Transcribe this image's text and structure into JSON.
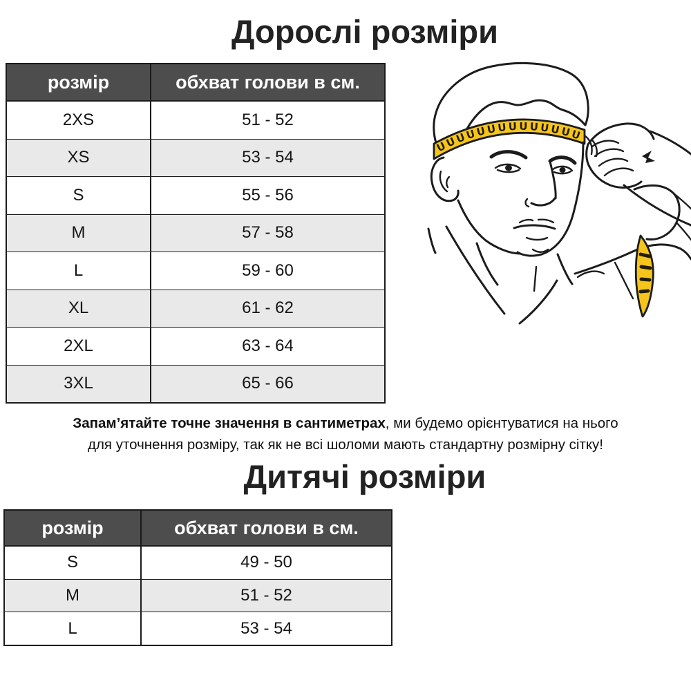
{
  "adult": {
    "title": "Дорослі розміри",
    "table": {
      "col_size": "розмір",
      "col_circumference": "обхват голови в см.",
      "rows": [
        {
          "size": "2XS",
          "cm": "51 - 52"
        },
        {
          "size": "XS",
          "cm": "53 - 54"
        },
        {
          "size": "S",
          "cm": "55 - 56"
        },
        {
          "size": "M",
          "cm": "57 - 58"
        },
        {
          "size": "L",
          "cm": "59 - 60"
        },
        {
          "size": "XL",
          "cm": "61 - 62"
        },
        {
          "size": "2XL",
          "cm": "63 - 64"
        },
        {
          "size": "3XL",
          "cm": "65 - 66"
        }
      ]
    }
  },
  "note": {
    "bold": "Запам’ятайте точне значення в сантиметрах",
    "line1_rest": ", ми будемо орієнтуватися на нього",
    "line2": "для уточнення розміру, так як не всі шоломи мають стандартну розмірну сітку!"
  },
  "kids": {
    "title": "Дитячі розміри",
    "table": {
      "col_size": "розмір",
      "col_circumference": "обхват голови в см.",
      "rows": [
        {
          "size": "S",
          "cm": "49 - 50"
        },
        {
          "size": "M",
          "cm": "51 - 52"
        },
        {
          "size": "L",
          "cm": "53 - 54"
        }
      ]
    }
  },
  "illustration": {
    "description": "line drawing of a man measuring his head circumference with a yellow measuring tape",
    "tape_marks": "UUUUUUUUUUUUUU"
  },
  "colors": {
    "header_bg": "#4d4d4d",
    "header_text": "#ffffff",
    "row_alt": "#e9e9e9",
    "border": "#1b1b1b",
    "text": "#151515",
    "tape": "#f6c51d"
  }
}
